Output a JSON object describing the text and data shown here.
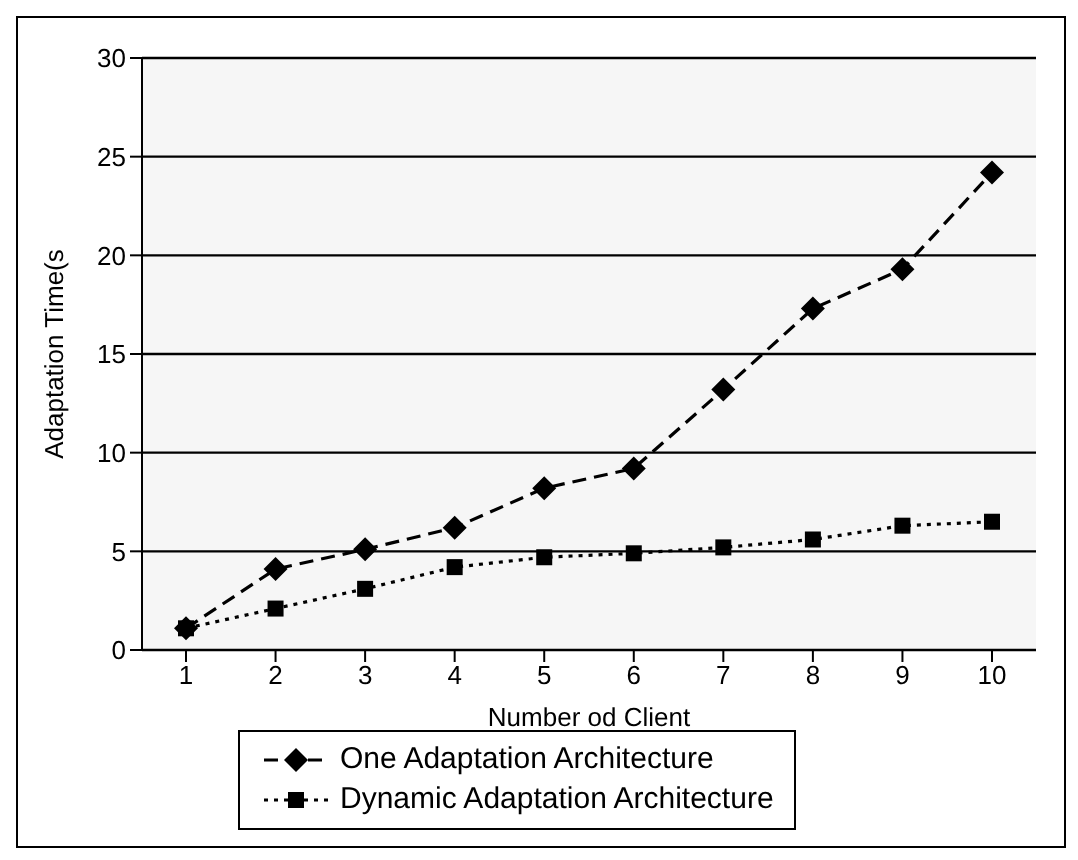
{
  "chart_data": {
    "type": "line",
    "xlabel": "Number od Client",
    "ylabel": "Adaptation Time(s",
    "categories": [
      "1",
      "2",
      "3",
      "4",
      "5",
      "6",
      "7",
      "8",
      "9",
      "10"
    ],
    "ylim": [
      0,
      30
    ],
    "yticks": [
      0,
      5,
      10,
      15,
      20,
      25,
      30
    ],
    "grid": "y",
    "legend": "bottom",
    "series": [
      {
        "name": "One Adaptation Architecture",
        "color": "#000000",
        "line_style": "dashed",
        "marker": "diamond",
        "values": [
          1.1,
          4.1,
          5.1,
          6.2,
          8.2,
          9.2,
          13.2,
          17.3,
          19.3,
          24.2
        ]
      },
      {
        "name": "Dynamic Adaptation Architecture",
        "color": "#000000",
        "line_style": "dotted",
        "marker": "square",
        "values": [
          1.1,
          2.1,
          3.1,
          4.2,
          4.7,
          4.9,
          5.2,
          5.6,
          6.3,
          6.5
        ]
      }
    ]
  }
}
